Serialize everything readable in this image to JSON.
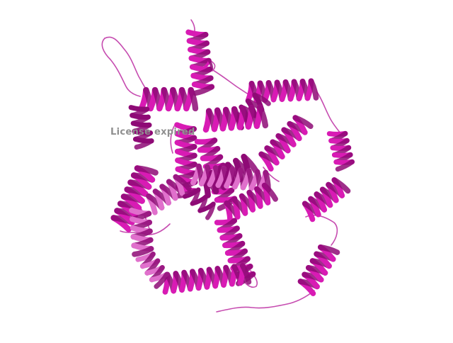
{
  "viewer": {
    "watermark": "License expired",
    "background_color": "#ffffff",
    "colors": {
      "helix_main": "#d81bb4",
      "helix_dark": "#8e0a76",
      "helix_light": "#e070cc",
      "coil": "#c64cb0"
    },
    "render_style": "cartoon"
  }
}
